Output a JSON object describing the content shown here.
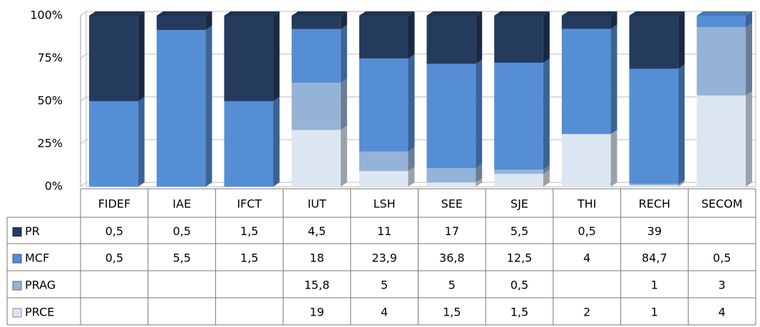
{
  "chart_data": {
    "type": "stacked_percent_bar",
    "categories": [
      "FIDEF",
      "IAE",
      "IFCT",
      "IUT",
      "LSH",
      "SEE",
      "SJE",
      "THI",
      "RECH",
      "SECOM"
    ],
    "series": [
      {
        "name": "PR",
        "color": "#253b5e",
        "values": [
          0.5,
          0.5,
          1.5,
          4.5,
          11,
          17,
          5.5,
          0.5,
          39,
          null
        ],
        "value_labels": [
          "0,5",
          "0,5",
          "1,5",
          "4,5",
          "11",
          "17",
          "5,5",
          "0,5",
          "39",
          null
        ]
      },
      {
        "name": "MCF",
        "color": "#558ed5",
        "values": [
          0.5,
          5.5,
          1.5,
          18,
          23.9,
          36.8,
          12.5,
          4,
          84.7,
          0.5
        ],
        "value_labels": [
          "0,5",
          "5,5",
          "1,5",
          "18",
          "23,9",
          "36,8",
          "12,5",
          "4",
          "84,7",
          "0,5"
        ]
      },
      {
        "name": "PRAG",
        "color": "#95b3d7",
        "values": [
          null,
          null,
          null,
          15.8,
          5,
          5,
          0.5,
          null,
          1,
          3
        ],
        "value_labels": [
          null,
          null,
          null,
          "15,8",
          "5",
          "5",
          "0,5",
          null,
          "1",
          "3"
        ]
      },
      {
        "name": "PRCE",
        "color": "#dce6f2",
        "values": [
          null,
          null,
          null,
          19,
          4,
          1.5,
          1.5,
          2,
          1,
          4
        ],
        "value_labels": [
          null,
          null,
          null,
          "19",
          "4",
          "1,5",
          "1,5",
          "2",
          "1",
          "4"
        ]
      }
    ],
    "ylim": [
      0,
      100
    ],
    "yticks": [
      {
        "value": 0,
        "label": "0%"
      },
      {
        "value": 25,
        "label": "25%"
      },
      {
        "value": 50,
        "label": "50%"
      },
      {
        "value": 75,
        "label": "75%"
      },
      {
        "value": 100,
        "label": "100%"
      }
    ],
    "grid": true
  }
}
